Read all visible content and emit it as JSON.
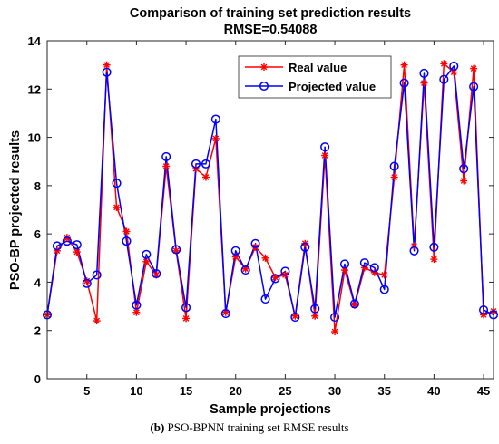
{
  "chart_data": {
    "type": "line",
    "title": "Comparison of training set prediction results",
    "subtitle": "RMSE=0.54088",
    "xlabel": "Sample projections",
    "ylabel": "PSO-BP projected results",
    "xlim": [
      1,
      46
    ],
    "ylim": [
      0,
      14
    ],
    "xticks": [
      5,
      10,
      15,
      20,
      25,
      30,
      35,
      40,
      45
    ],
    "yticks": [
      0,
      2,
      4,
      6,
      8,
      10,
      12,
      14
    ],
    "grid": false,
    "legend_position": "top-right",
    "x": [
      1,
      2,
      3,
      4,
      5,
      6,
      7,
      8,
      9,
      10,
      11,
      12,
      13,
      14,
      15,
      16,
      17,
      18,
      19,
      20,
      21,
      22,
      23,
      24,
      25,
      26,
      27,
      28,
      29,
      30,
      31,
      32,
      33,
      34,
      35,
      36,
      37,
      38,
      39,
      40,
      41,
      42,
      43,
      44,
      45,
      46
    ],
    "series": [
      {
        "name": "Real value",
        "color": "#ff0000",
        "marker": "asterisk",
        "values": [
          2.65,
          5.3,
          5.85,
          5.25,
          4.05,
          2.4,
          13.0,
          7.1,
          6.1,
          2.75,
          4.85,
          4.3,
          8.8,
          5.3,
          2.5,
          8.7,
          8.35,
          9.95,
          2.75,
          5.05,
          4.55,
          5.45,
          5.0,
          4.2,
          4.3,
          2.6,
          5.6,
          2.6,
          9.25,
          1.95,
          4.5,
          3.05,
          4.6,
          4.4,
          4.3,
          8.35,
          13.0,
          5.5,
          12.25,
          4.95,
          13.05,
          12.7,
          8.2,
          12.85,
          2.65,
          2.8
        ]
      },
      {
        "name": "Projected value",
        "color": "#0000ff",
        "marker": "circle",
        "values": [
          2.65,
          5.5,
          5.7,
          5.55,
          3.95,
          4.3,
          12.7,
          8.1,
          5.7,
          3.05,
          5.15,
          4.35,
          9.2,
          5.35,
          2.95,
          8.9,
          8.9,
          10.75,
          2.7,
          5.3,
          4.5,
          5.6,
          3.3,
          4.15,
          4.45,
          2.55,
          5.45,
          2.9,
          9.6,
          2.55,
          4.75,
          3.1,
          4.8,
          4.6,
          3.7,
          8.8,
          12.25,
          5.3,
          12.65,
          5.45,
          12.4,
          12.95,
          8.7,
          12.1,
          2.85,
          2.65
        ]
      }
    ]
  },
  "caption": {
    "label": "(b)",
    "text": " PSO-BPNN training set RMSE results"
  }
}
